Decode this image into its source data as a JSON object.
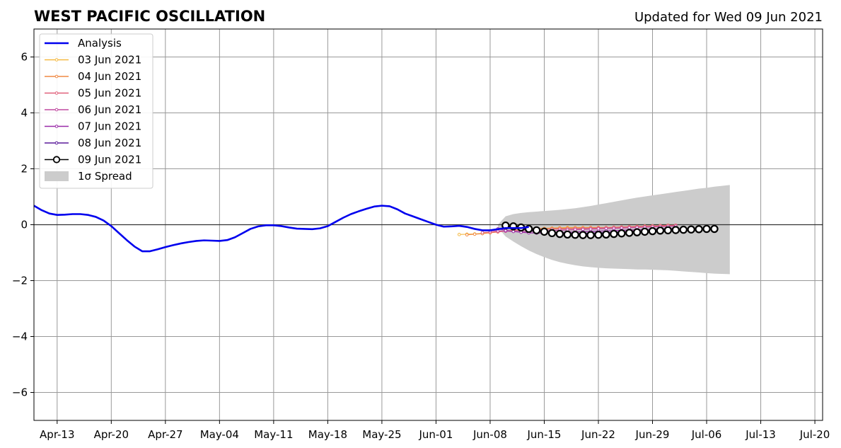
{
  "chart_data": {
    "type": "line",
    "title": "WEST PACIFIC OSCILLATION",
    "subtitle": "Updated for Wed 09 Jun 2021",
    "xlabel": "",
    "ylabel": "",
    "x_start_date": "2021-04-10",
    "xlim": [
      "2021-04-10",
      "2021-07-21"
    ],
    "ylim": [
      -7,
      7
    ],
    "grid": true,
    "legend_position": "upper-left",
    "x_ticks": [
      "Apr-13",
      "Apr-20",
      "Apr-27",
      "May-04",
      "May-11",
      "May-18",
      "May-25",
      "Jun-01",
      "Jun-08",
      "Jun-15",
      "Jun-22",
      "Jun-29",
      "Jul-06",
      "Jul-13",
      "Jul-20"
    ],
    "x_tick_dates": [
      "2021-04-13",
      "2021-04-20",
      "2021-04-27",
      "2021-05-04",
      "2021-05-11",
      "2021-05-18",
      "2021-05-25",
      "2021-06-01",
      "2021-06-08",
      "2021-06-15",
      "2021-06-22",
      "2021-06-29",
      "2021-07-06",
      "2021-07-13",
      "2021-07-20"
    ],
    "y_ticks": [
      6,
      4,
      2,
      0,
      -2,
      -4,
      -6
    ],
    "y_tick_labels": [
      "6",
      "4",
      "2",
      "0",
      "−2",
      "−4",
      "−6"
    ],
    "analysis": {
      "name": "Analysis",
      "color": "#0000ee",
      "start_date": "2021-04-10",
      "values": [
        0.68,
        0.52,
        0.4,
        0.35,
        0.36,
        0.38,
        0.38,
        0.35,
        0.28,
        0.15,
        -0.05,
        -0.3,
        -0.55,
        -0.78,
        -0.95,
        -0.95,
        -0.88,
        -0.8,
        -0.73,
        -0.67,
        -0.62,
        -0.58,
        -0.56,
        -0.57,
        -0.58,
        -0.55,
        -0.45,
        -0.3,
        -0.15,
        -0.06,
        -0.02,
        -0.02,
        -0.05,
        -0.1,
        -0.14,
        -0.15,
        -0.16,
        -0.13,
        -0.05,
        0.1,
        0.25,
        0.38,
        0.48,
        0.57,
        0.65,
        0.68,
        0.66,
        0.55,
        0.4,
        0.3,
        0.2,
        0.1,
        0.0,
        -0.07,
        -0.06,
        -0.04,
        -0.08,
        -0.15,
        -0.2,
        -0.2,
        -0.16,
        -0.12,
        -0.12,
        -0.12,
        -0.08
      ]
    },
    "forecasts": [
      {
        "name": "03 Jun 2021",
        "color": "#f5b942",
        "start_date": "2021-06-04",
        "values": [
          -0.35,
          -0.34,
          -0.33,
          -0.31,
          -0.28,
          -0.25,
          -0.22,
          -0.2,
          -0.18,
          -0.16,
          -0.14,
          -0.13,
          -0.12,
          -0.11,
          -0.1,
          -0.1,
          -0.1,
          -0.1,
          -0.1,
          -0.1,
          -0.1,
          -0.09,
          -0.08,
          -0.07,
          -0.06,
          -0.05,
          -0.04,
          -0.03,
          -0.02
        ]
      },
      {
        "name": "04 Jun 2021",
        "color": "#f08a44",
        "start_date": "2021-06-05",
        "values": [
          -0.36,
          -0.34,
          -0.32,
          -0.29,
          -0.26,
          -0.23,
          -0.21,
          -0.19,
          -0.17,
          -0.15,
          -0.14,
          -0.13,
          -0.12,
          -0.12,
          -0.11,
          -0.11,
          -0.1,
          -0.1,
          -0.1,
          -0.09,
          -0.08,
          -0.07,
          -0.06,
          -0.05,
          -0.04,
          -0.03,
          -0.02,
          -0.02
        ]
      },
      {
        "name": "05 Jun 2021",
        "color": "#e0607a",
        "start_date": "2021-06-07",
        "values": [
          -0.28,
          -0.27,
          -0.25,
          -0.23,
          -0.21,
          -0.19,
          -0.18,
          -0.17,
          -0.16,
          -0.16,
          -0.15,
          -0.15,
          -0.14,
          -0.14,
          -0.13,
          -0.12,
          -0.11,
          -0.1,
          -0.09,
          -0.08,
          -0.07,
          -0.06,
          -0.05,
          -0.04,
          -0.03,
          -0.02
        ]
      },
      {
        "name": "06 Jun 2021",
        "color": "#c04aa0",
        "start_date": "2021-06-08",
        "values": [
          -0.22,
          -0.22,
          -0.23,
          -0.24,
          -0.25,
          -0.24,
          -0.23,
          -0.22,
          -0.21,
          -0.2,
          -0.19,
          -0.18,
          -0.17,
          -0.16,
          -0.15,
          -0.14,
          -0.13,
          -0.12,
          -0.11,
          -0.1,
          -0.09,
          -0.08,
          -0.07,
          -0.06,
          -0.05
        ]
      },
      {
        "name": "07 Jun 2021",
        "color": "#9a2aa8",
        "start_date": "2021-06-09",
        "values": [
          -0.15,
          -0.2,
          -0.24,
          -0.27,
          -0.29,
          -0.3,
          -0.3,
          -0.29,
          -0.28,
          -0.27,
          -0.26,
          -0.25,
          -0.24,
          -0.23,
          -0.22,
          -0.21,
          -0.2,
          -0.19,
          -0.18,
          -0.17,
          -0.16,
          -0.15,
          -0.14,
          -0.13
        ]
      },
      {
        "name": "08 Jun 2021",
        "color": "#5a1a9a",
        "start_date": "2021-06-10",
        "values": [
          -0.08,
          -0.12,
          -0.16,
          -0.2,
          -0.24,
          -0.27,
          -0.29,
          -0.31,
          -0.32,
          -0.32,
          -0.31,
          -0.3,
          -0.29,
          -0.28,
          -0.27,
          -0.26,
          -0.25,
          -0.24,
          -0.23,
          -0.22,
          -0.21,
          -0.2,
          -0.19
        ]
      },
      {
        "name": "09 Jun 2021",
        "color": "#000000",
        "marker": "open-circle",
        "start_date": "2021-06-10",
        "values": [
          -0.03,
          -0.06,
          -0.1,
          -0.15,
          -0.2,
          -0.25,
          -0.3,
          -0.33,
          -0.35,
          -0.36,
          -0.37,
          -0.37,
          -0.36,
          -0.35,
          -0.33,
          -0.31,
          -0.29,
          -0.27,
          -0.25,
          -0.23,
          -0.21,
          -0.2,
          -0.19,
          -0.18,
          -0.17,
          -0.16,
          -0.15,
          -0.15
        ]
      }
    ],
    "spread": {
      "name": "1σ Spread",
      "color": "#cccccc",
      "start_date": "2021-06-09",
      "upper": [
        0.0,
        0.3,
        0.38,
        0.42,
        0.45,
        0.47,
        0.49,
        0.51,
        0.53,
        0.56,
        0.59,
        0.63,
        0.67,
        0.72,
        0.77,
        0.82,
        0.87,
        0.92,
        0.97,
        1.01,
        1.05,
        1.09,
        1.13,
        1.17,
        1.21,
        1.25,
        1.29,
        1.32,
        1.36,
        1.39,
        1.42
      ],
      "lower": [
        -0.1,
        -0.42,
        -0.6,
        -0.77,
        -0.92,
        -1.05,
        -1.16,
        -1.26,
        -1.34,
        -1.4,
        -1.45,
        -1.49,
        -1.52,
        -1.54,
        -1.56,
        -1.57,
        -1.58,
        -1.59,
        -1.6,
        -1.6,
        -1.61,
        -1.62,
        -1.63,
        -1.65,
        -1.67,
        -1.69,
        -1.71,
        -1.73,
        -1.75,
        -1.76,
        -1.77
      ]
    },
    "legend": [
      "Analysis",
      "03 Jun 2021",
      "04 Jun 2021",
      "05 Jun 2021",
      "06 Jun 2021",
      "07 Jun 2021",
      "08 Jun 2021",
      "09 Jun 2021",
      "1σ Spread"
    ]
  }
}
